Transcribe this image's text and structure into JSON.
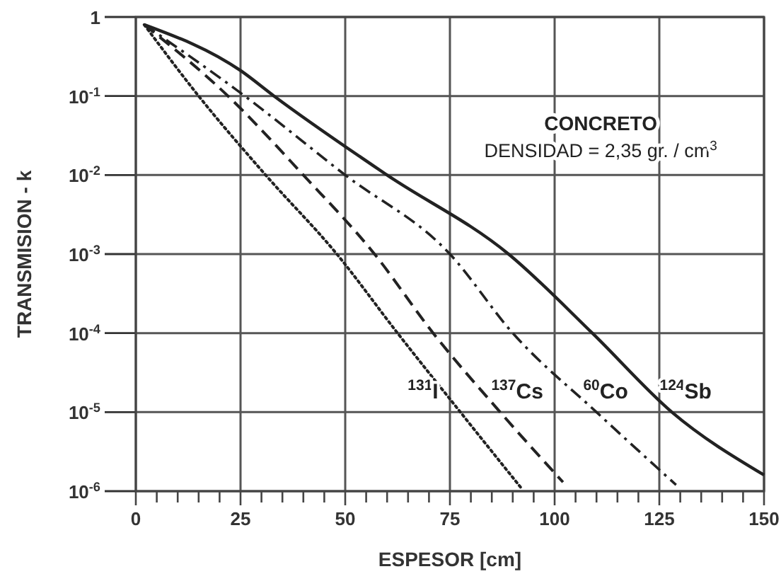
{
  "chart_data": {
    "type": "line",
    "xlabel": "ESPESOR [cm]",
    "ylabel": "TRANSMISION - k",
    "annotations": [
      "CONCRETO",
      "DENSIDAD = 2,35 gr. / cm$^{3}$"
    ],
    "log": "y",
    "grid": true,
    "marker": "none",
    "xlim": [
      0,
      150
    ],
    "ylim": [
      1e-06,
      1
    ],
    "xticks": [
      0,
      {
        "value": 5,
        "label": null
      },
      {
        "value": 10,
        "label": null
      },
      {
        "value": 15,
        "label": null
      },
      {
        "value": 20,
        "label": null
      },
      25,
      {
        "value": 30,
        "label": null
      },
      {
        "value": 35,
        "label": null
      },
      {
        "value": 40,
        "label": null
      },
      {
        "value": 45,
        "label": null
      },
      50,
      {
        "value": 55,
        "label": null
      },
      {
        "value": 60,
        "label": null
      },
      {
        "value": 65,
        "label": null
      },
      {
        "value": 70,
        "label": null
      },
      75,
      {
        "value": 80,
        "label": null
      },
      {
        "value": 85,
        "label": null
      },
      {
        "value": 90,
        "label": null
      },
      {
        "value": 95,
        "label": null
      },
      100,
      {
        "value": 105,
        "label": null
      },
      {
        "value": 110,
        "label": null
      },
      {
        "value": 115,
        "label": null
      },
      {
        "value": 120,
        "label": null
      },
      125,
      {
        "value": 130,
        "label": null
      },
      {
        "value": 135,
        "label": null
      },
      {
        "value": 140,
        "label": null
      },
      {
        "value": 145,
        "label": null
      },
      150
    ],
    "yticks": [
      {
        "value": 1e-06,
        "label": "10$^{-6}$"
      },
      {
        "value": 1e-05,
        "label": "10$^{-5}$"
      },
      {
        "value": 0.0001,
        "label": "10$^{-4}$"
      },
      {
        "value": 0.001,
        "label": "10$^{-3}$"
      },
      {
        "value": 0.01,
        "label": "10$^{-2}$"
      },
      {
        "value": 0.1,
        "label": "10$^{-1}$"
      },
      1
    ],
    "series": [
      {
        "name": "$^{131}$I",
        "color": "#222222",
        "line_style": "dotted",
        "x": [
          2,
          15,
          31,
          48,
          62.5,
          77.5,
          92
        ],
        "values": [
          0.8,
          0.1,
          0.01,
          0.001,
          0.0001,
          1e-05,
          1.1e-06
        ]
      },
      {
        "name": "$^{137}$Cs",
        "color": "#222222",
        "line_style": "dashed",
        "x": [
          2,
          22,
          40,
          57,
          71,
          87,
          102
        ],
        "values": [
          0.8,
          0.1,
          0.01,
          0.001,
          0.0001,
          1e-05,
          1.3e-06
        ]
      },
      {
        "name": "$^{60}$Co",
        "color": "#222222",
        "line_style": "dashdot",
        "x": [
          2,
          26,
          50,
          75,
          90,
          110,
          129
        ],
        "values": [
          0.8,
          0.1,
          0.01,
          0.001,
          0.0001,
          1e-05,
          1.2e-06
        ]
      },
      {
        "name": "$^{124}$Sb",
        "color": "#222222",
        "line_style": "solid",
        "x": [
          2,
          25,
          33,
          60,
          89,
          109,
          128,
          150
        ],
        "values": [
          0.8,
          0.21,
          0.1,
          0.01,
          0.001,
          0.0001,
          1e-05,
          1.6e-06
        ]
      }
    ]
  }
}
